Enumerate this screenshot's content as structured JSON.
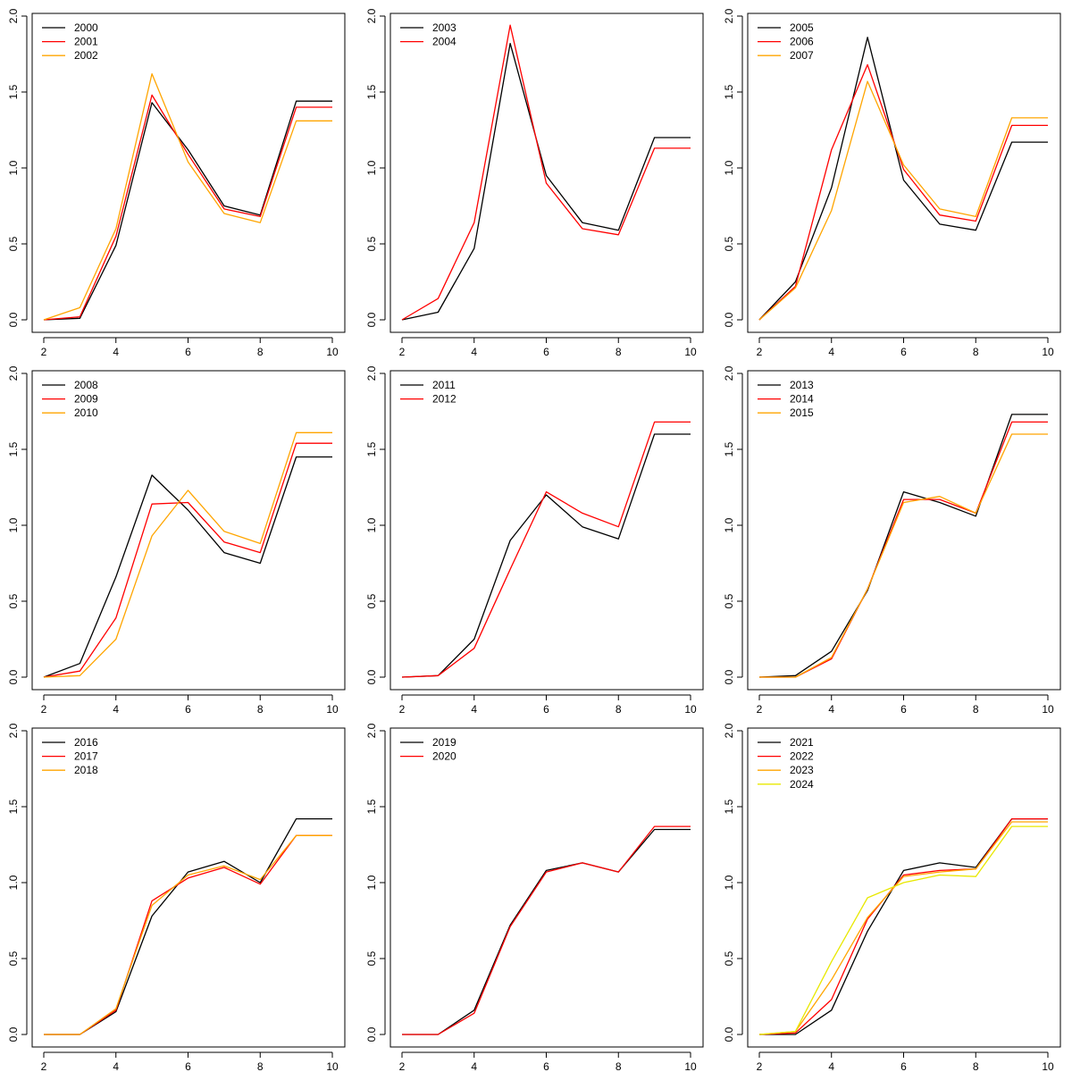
{
  "chart_data": [
    {
      "type": "line",
      "x": [
        2,
        3,
        4,
        5,
        6,
        7,
        8,
        9,
        10
      ],
      "xlim": [
        2,
        10
      ],
      "ylim": [
        0,
        2
      ],
      "xticks": [
        2,
        4,
        6,
        8,
        10
      ],
      "yticks": [
        0.0,
        0.5,
        1.0,
        1.5,
        2.0
      ],
      "xtick_labels": [
        "2",
        "4",
        "6",
        "8",
        "10"
      ],
      "ytick_labels": [
        "0.0",
        "0.5",
        "1.0",
        "1.5",
        "2.0"
      ],
      "legend_position": "top-left",
      "series": [
        {
          "name": "2000",
          "color": "#000000",
          "values": [
            0.0,
            0.01,
            0.49,
            1.43,
            1.12,
            0.75,
            0.69,
            1.44,
            1.44
          ]
        },
        {
          "name": "2001",
          "color": "#ff0000",
          "values": [
            0.0,
            0.02,
            0.55,
            1.48,
            1.09,
            0.73,
            0.68,
            1.4,
            1.4
          ]
        },
        {
          "name": "2002",
          "color": "#ffa500",
          "values": [
            0.0,
            0.08,
            0.6,
            1.62,
            1.04,
            0.7,
            0.64,
            1.31,
            1.31
          ]
        }
      ]
    },
    {
      "type": "line",
      "x": [
        2,
        3,
        4,
        5,
        6,
        7,
        8,
        9,
        10
      ],
      "xlim": [
        2,
        10
      ],
      "ylim": [
        0,
        2
      ],
      "xticks": [
        2,
        4,
        6,
        8,
        10
      ],
      "yticks": [
        0.0,
        0.5,
        1.0,
        1.5,
        2.0
      ],
      "xtick_labels": [
        "2",
        "4",
        "6",
        "8",
        "10"
      ],
      "ytick_labels": [
        "0.0",
        "0.5",
        "1.0",
        "1.5",
        "2.0"
      ],
      "legend_position": "top-left",
      "series": [
        {
          "name": "2003",
          "color": "#000000",
          "values": [
            0.0,
            0.05,
            0.47,
            1.82,
            0.95,
            0.64,
            0.59,
            1.2,
            1.2
          ]
        },
        {
          "name": "2004",
          "color": "#ff0000",
          "values": [
            0.0,
            0.14,
            0.64,
            1.94,
            0.9,
            0.6,
            0.56,
            1.13,
            1.13
          ]
        }
      ]
    },
    {
      "type": "line",
      "x": [
        2,
        3,
        4,
        5,
        6,
        7,
        8,
        9,
        10
      ],
      "xlim": [
        2,
        10
      ],
      "ylim": [
        0,
        2
      ],
      "xticks": [
        2,
        4,
        6,
        8,
        10
      ],
      "yticks": [
        0.0,
        0.5,
        1.0,
        1.5,
        2.0
      ],
      "xtick_labels": [
        "2",
        "4",
        "6",
        "8",
        "10"
      ],
      "ytick_labels": [
        "0.0",
        "0.5",
        "1.0",
        "1.5",
        "2.0"
      ],
      "legend_position": "top-left",
      "series": [
        {
          "name": "2005",
          "color": "#000000",
          "values": [
            0.0,
            0.25,
            0.87,
            1.86,
            0.92,
            0.63,
            0.59,
            1.17,
            1.17
          ]
        },
        {
          "name": "2006",
          "color": "#ff0000",
          "values": [
            0.0,
            0.22,
            1.12,
            1.68,
            0.99,
            0.69,
            0.65,
            1.28,
            1.28
          ]
        },
        {
          "name": "2007",
          "color": "#ffa500",
          "values": [
            0.0,
            0.21,
            0.72,
            1.57,
            1.02,
            0.73,
            0.68,
            1.33,
            1.33
          ]
        }
      ]
    },
    {
      "type": "line",
      "x": [
        2,
        3,
        4,
        5,
        6,
        7,
        8,
        9,
        10
      ],
      "xlim": [
        2,
        10
      ],
      "ylim": [
        0,
        2
      ],
      "xticks": [
        2,
        4,
        6,
        8,
        10
      ],
      "yticks": [
        0.0,
        0.5,
        1.0,
        1.5,
        2.0
      ],
      "xtick_labels": [
        "2",
        "4",
        "6",
        "8",
        "10"
      ],
      "ytick_labels": [
        "0.0",
        "0.5",
        "1.0",
        "1.5",
        "2.0"
      ],
      "legend_position": "top-left",
      "series": [
        {
          "name": "2008",
          "color": "#000000",
          "values": [
            0.0,
            0.09,
            0.66,
            1.33,
            1.1,
            0.82,
            0.75,
            1.45,
            1.45
          ]
        },
        {
          "name": "2009",
          "color": "#ff0000",
          "values": [
            0.0,
            0.04,
            0.39,
            1.14,
            1.15,
            0.89,
            0.82,
            1.54,
            1.54
          ]
        },
        {
          "name": "2010",
          "color": "#ffa500",
          "values": [
            0.0,
            0.01,
            0.25,
            0.93,
            1.23,
            0.96,
            0.88,
            1.61,
            1.61
          ]
        }
      ]
    },
    {
      "type": "line",
      "x": [
        2,
        3,
        4,
        5,
        6,
        7,
        8,
        9,
        10
      ],
      "xlim": [
        2,
        10
      ],
      "ylim": [
        0,
        2
      ],
      "xticks": [
        2,
        4,
        6,
        8,
        10
      ],
      "yticks": [
        0.0,
        0.5,
        1.0,
        1.5,
        2.0
      ],
      "xtick_labels": [
        "2",
        "4",
        "6",
        "8",
        "10"
      ],
      "ytick_labels": [
        "0.0",
        "0.5",
        "1.0",
        "1.5",
        "2.0"
      ],
      "legend_position": "top-left",
      "series": [
        {
          "name": "2011",
          "color": "#000000",
          "values": [
            0.0,
            0.01,
            0.25,
            0.9,
            1.2,
            0.99,
            0.91,
            1.6,
            1.6
          ]
        },
        {
          "name": "2012",
          "color": "#ff0000",
          "values": [
            0.0,
            0.01,
            0.19,
            0.71,
            1.22,
            1.08,
            0.99,
            1.68,
            1.68
          ]
        }
      ]
    },
    {
      "type": "line",
      "x": [
        2,
        3,
        4,
        5,
        6,
        7,
        8,
        9,
        10
      ],
      "xlim": [
        2,
        10
      ],
      "ylim": [
        0,
        2
      ],
      "xticks": [
        2,
        4,
        6,
        8,
        10
      ],
      "yticks": [
        0.0,
        0.5,
        1.0,
        1.5,
        2.0
      ],
      "xtick_labels": [
        "2",
        "4",
        "6",
        "8",
        "10"
      ],
      "ytick_labels": [
        "0.0",
        "0.5",
        "1.0",
        "1.5",
        "2.0"
      ],
      "legend_position": "top-left",
      "series": [
        {
          "name": "2013",
          "color": "#000000",
          "values": [
            0.0,
            0.01,
            0.17,
            0.57,
            1.22,
            1.15,
            1.06,
            1.73,
            1.73
          ]
        },
        {
          "name": "2014",
          "color": "#ff0000",
          "values": [
            0.0,
            0.0,
            0.12,
            0.58,
            1.17,
            1.17,
            1.08,
            1.68,
            1.68
          ]
        },
        {
          "name": "2015",
          "color": "#ffa500",
          "values": [
            0.0,
            0.0,
            0.13,
            0.58,
            1.15,
            1.19,
            1.08,
            1.6,
            1.6
          ]
        }
      ]
    },
    {
      "type": "line",
      "x": [
        2,
        3,
        4,
        5,
        6,
        7,
        8,
        9,
        10
      ],
      "xlim": [
        2,
        10
      ],
      "ylim": [
        0,
        2
      ],
      "xticks": [
        2,
        4,
        6,
        8,
        10
      ],
      "yticks": [
        0.0,
        0.5,
        1.0,
        1.5,
        2.0
      ],
      "xtick_labels": [
        "2",
        "4",
        "6",
        "8",
        "10"
      ],
      "ytick_labels": [
        "0.0",
        "0.5",
        "1.0",
        "1.5",
        "2.0"
      ],
      "legend_position": "top-left",
      "series": [
        {
          "name": "2016",
          "color": "#000000",
          "values": [
            0.0,
            0.0,
            0.15,
            0.78,
            1.07,
            1.14,
            1.0,
            1.42,
            1.42
          ]
        },
        {
          "name": "2017",
          "color": "#ff0000",
          "values": [
            0.0,
            0.0,
            0.16,
            0.88,
            1.03,
            1.1,
            0.99,
            1.31,
            1.31
          ]
        },
        {
          "name": "2018",
          "color": "#ffa500",
          "values": [
            0.0,
            0.0,
            0.17,
            0.85,
            1.05,
            1.11,
            1.02,
            1.31,
            1.31
          ]
        }
      ]
    },
    {
      "type": "line",
      "x": [
        2,
        3,
        4,
        5,
        6,
        7,
        8,
        9,
        10
      ],
      "xlim": [
        2,
        10
      ],
      "ylim": [
        0,
        2
      ],
      "xticks": [
        2,
        4,
        6,
        8,
        10
      ],
      "yticks": [
        0.0,
        0.5,
        1.0,
        1.5,
        2.0
      ],
      "xtick_labels": [
        "2",
        "4",
        "6",
        "8",
        "10"
      ],
      "ytick_labels": [
        "0.0",
        "0.5",
        "1.0",
        "1.5",
        "2.0"
      ],
      "legend_position": "top-left",
      "series": [
        {
          "name": "2019",
          "color": "#000000",
          "values": [
            0.0,
            0.0,
            0.16,
            0.72,
            1.08,
            1.13,
            1.07,
            1.35,
            1.35
          ]
        },
        {
          "name": "2020",
          "color": "#ff0000",
          "values": [
            0.0,
            0.0,
            0.14,
            0.71,
            1.07,
            1.13,
            1.07,
            1.37,
            1.37
          ]
        }
      ]
    },
    {
      "type": "line",
      "x": [
        2,
        3,
        4,
        5,
        6,
        7,
        8,
        9,
        10
      ],
      "xlim": [
        2,
        10
      ],
      "ylim": [
        0,
        2
      ],
      "xticks": [
        2,
        4,
        6,
        8,
        10
      ],
      "yticks": [
        0.0,
        0.5,
        1.0,
        1.5,
        2.0
      ],
      "xtick_labels": [
        "2",
        "4",
        "6",
        "8",
        "10"
      ],
      "ytick_labels": [
        "0.0",
        "0.5",
        "1.0",
        "1.5",
        "2.0"
      ],
      "legend_position": "top-left",
      "series": [
        {
          "name": "2021",
          "color": "#000000",
          "values": [
            0.0,
            0.0,
            0.16,
            0.68,
            1.08,
            1.13,
            1.1,
            1.42,
            1.42
          ]
        },
        {
          "name": "2022",
          "color": "#ff0000",
          "values": [
            0.0,
            0.01,
            0.23,
            0.76,
            1.05,
            1.08,
            1.09,
            1.42,
            1.42
          ]
        },
        {
          "name": "2023",
          "color": "#ffa500",
          "values": [
            0.0,
            0.02,
            0.36,
            0.77,
            1.04,
            1.07,
            1.09,
            1.4,
            1.4
          ]
        },
        {
          "name": "2024",
          "color": "#e8e800",
          "values": [
            0.0,
            0.02,
            0.48,
            0.9,
            1.0,
            1.05,
            1.04,
            1.37,
            1.37
          ]
        }
      ]
    }
  ]
}
